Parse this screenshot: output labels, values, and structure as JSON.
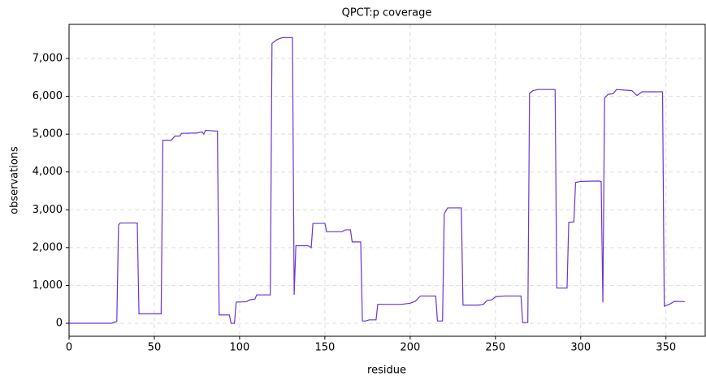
{
  "chart_data": {
    "type": "line",
    "title": "QPCT:p coverage",
    "x_label": "residue",
    "y_label": "observations",
    "series": [
      {
        "name": "QPCT:p",
        "color": "#6a35d6",
        "x": [
          0,
          25,
          28,
          29,
          30,
          40,
          41,
          54,
          55,
          60,
          62,
          65,
          66,
          75,
          78,
          79,
          80,
          87,
          88,
          94,
          95,
          97,
          98,
          104,
          106,
          109,
          110,
          118,
          119,
          122,
          125,
          131,
          132,
          133,
          140,
          142,
          143,
          150,
          151,
          160,
          162,
          165,
          166,
          171,
          172,
          174,
          176,
          180,
          181,
          195,
          200,
          203,
          206,
          215,
          216,
          219,
          220,
          222,
          230,
          231,
          240,
          243,
          245,
          248,
          250,
          255,
          265,
          266,
          269,
          270,
          272,
          275,
          285,
          286,
          292,
          293,
          296,
          297,
          300,
          310,
          312,
          313,
          314,
          316,
          319,
          321,
          330,
          333,
          336,
          348,
          349,
          352,
          355,
          361
        ],
        "values": [
          0,
          0,
          50,
          2600,
          2650,
          2650,
          250,
          250,
          4840,
          4840,
          4950,
          4950,
          5020,
          5030,
          5060,
          5000,
          5100,
          5080,
          220,
          220,
          0,
          0,
          560,
          570,
          620,
          640,
          750,
          750,
          7400,
          7500,
          7550,
          7550,
          750,
          2050,
          2050,
          2000,
          2640,
          2640,
          2420,
          2420,
          2470,
          2470,
          2150,
          2150,
          60,
          60,
          90,
          90,
          500,
          500,
          530,
          580,
          720,
          720,
          60,
          60,
          2900,
          3050,
          3050,
          480,
          480,
          500,
          600,
          620,
          700,
          720,
          720,
          20,
          20,
          6080,
          6150,
          6180,
          6180,
          930,
          930,
          2670,
          2680,
          3720,
          3750,
          3760,
          3750,
          550,
          5950,
          6050,
          6070,
          6180,
          6150,
          6020,
          6120,
          6120,
          450,
          500,
          580,
          570
        ]
      }
    ],
    "xlim": [
      0,
      373
    ],
    "ylim": [
      -344,
      7902
    ],
    "xticks": [
      0,
      50,
      100,
      150,
      200,
      250,
      300,
      350
    ],
    "yticks": [
      0,
      {
        "value": 1000,
        "label": "1,000"
      },
      {
        "value": 2000,
        "label": "2,000"
      },
      {
        "value": 3000,
        "label": "3,000"
      },
      {
        "value": 4000,
        "label": "4,000"
      },
      {
        "value": 5000,
        "label": "5,000"
      },
      {
        "value": 6000,
        "label": "6,000"
      },
      {
        "value": 7000,
        "label": "7,000"
      }
    ],
    "grid": true
  }
}
